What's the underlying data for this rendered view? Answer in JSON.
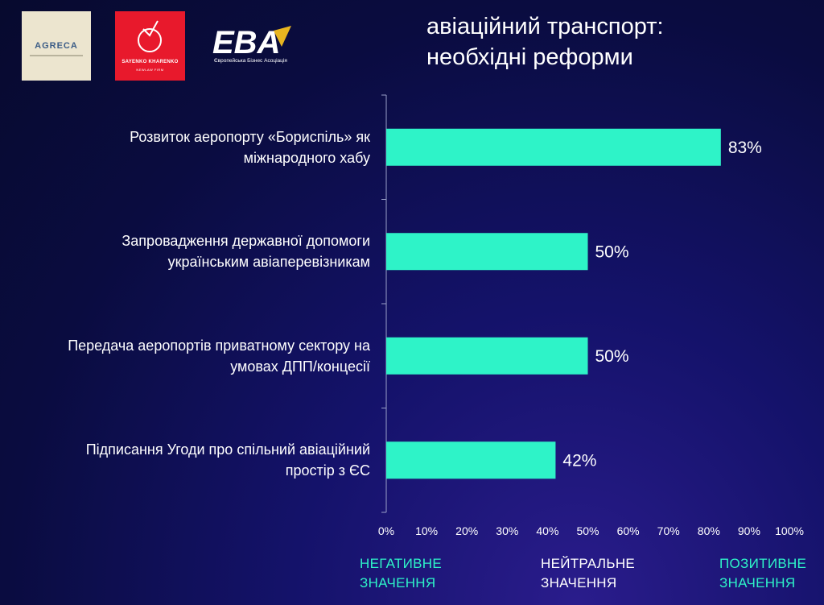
{
  "logos": {
    "agreca": "AGRECA",
    "sayenko": "SAYENKO KHARENKO",
    "sayenko_sub": "NEWLAW FIRM",
    "eba": "EBA",
    "eba_sub": "Європейська Бізнес Асоціація"
  },
  "title_lines": [
    "авіаційний транспорт:",
    "необхідні реформи"
  ],
  "colors": {
    "bar": "#2ef3c8",
    "background": "#0d0e52",
    "accent_text": "#2ef3c8"
  },
  "chart_data": {
    "type": "bar",
    "orientation": "horizontal",
    "categories": [
      "Розвиток аеропорту «Бориспіль» як міжнародного хабу",
      "Запровадження державної допомоги українським авіаперевізникам",
      "Передача аеропортів приватному сектору на умовах ДПП/концесії",
      "Підписання Угоди про спільний авіаційний простір з ЄС"
    ],
    "category_lines": [
      [
        "Розвиток аеропорту «Бориспіль» як",
        "міжнародного хабу"
      ],
      [
        "Запровадження державної допомоги",
        "українським авіаперевізникам"
      ],
      [
        "Передача аеропортів приватному сектору на",
        "умовах ДПП/концесії"
      ],
      [
        "Підписання Угоди про спільний авіаційний",
        "простір з ЄС"
      ]
    ],
    "values": [
      83,
      50,
      50,
      42
    ],
    "value_labels": [
      "83%",
      "50%",
      "50%",
      "42%"
    ],
    "xlim": [
      0,
      100
    ],
    "xticks": [
      "0%",
      "10%",
      "20%",
      "30%",
      "40%",
      "50%",
      "60%",
      "70%",
      "80%",
      "90%",
      "100%"
    ],
    "grid": false
  },
  "axis_notes": {
    "negative": [
      "НЕГАТИВНЕ",
      "ЗНАЧЕННЯ"
    ],
    "neutral": [
      "НЕЙТРАЛЬНЕ",
      "ЗНАЧЕННЯ"
    ],
    "positive": [
      "ПОЗИТИВНЕ",
      "ЗНАЧЕННЯ"
    ]
  }
}
